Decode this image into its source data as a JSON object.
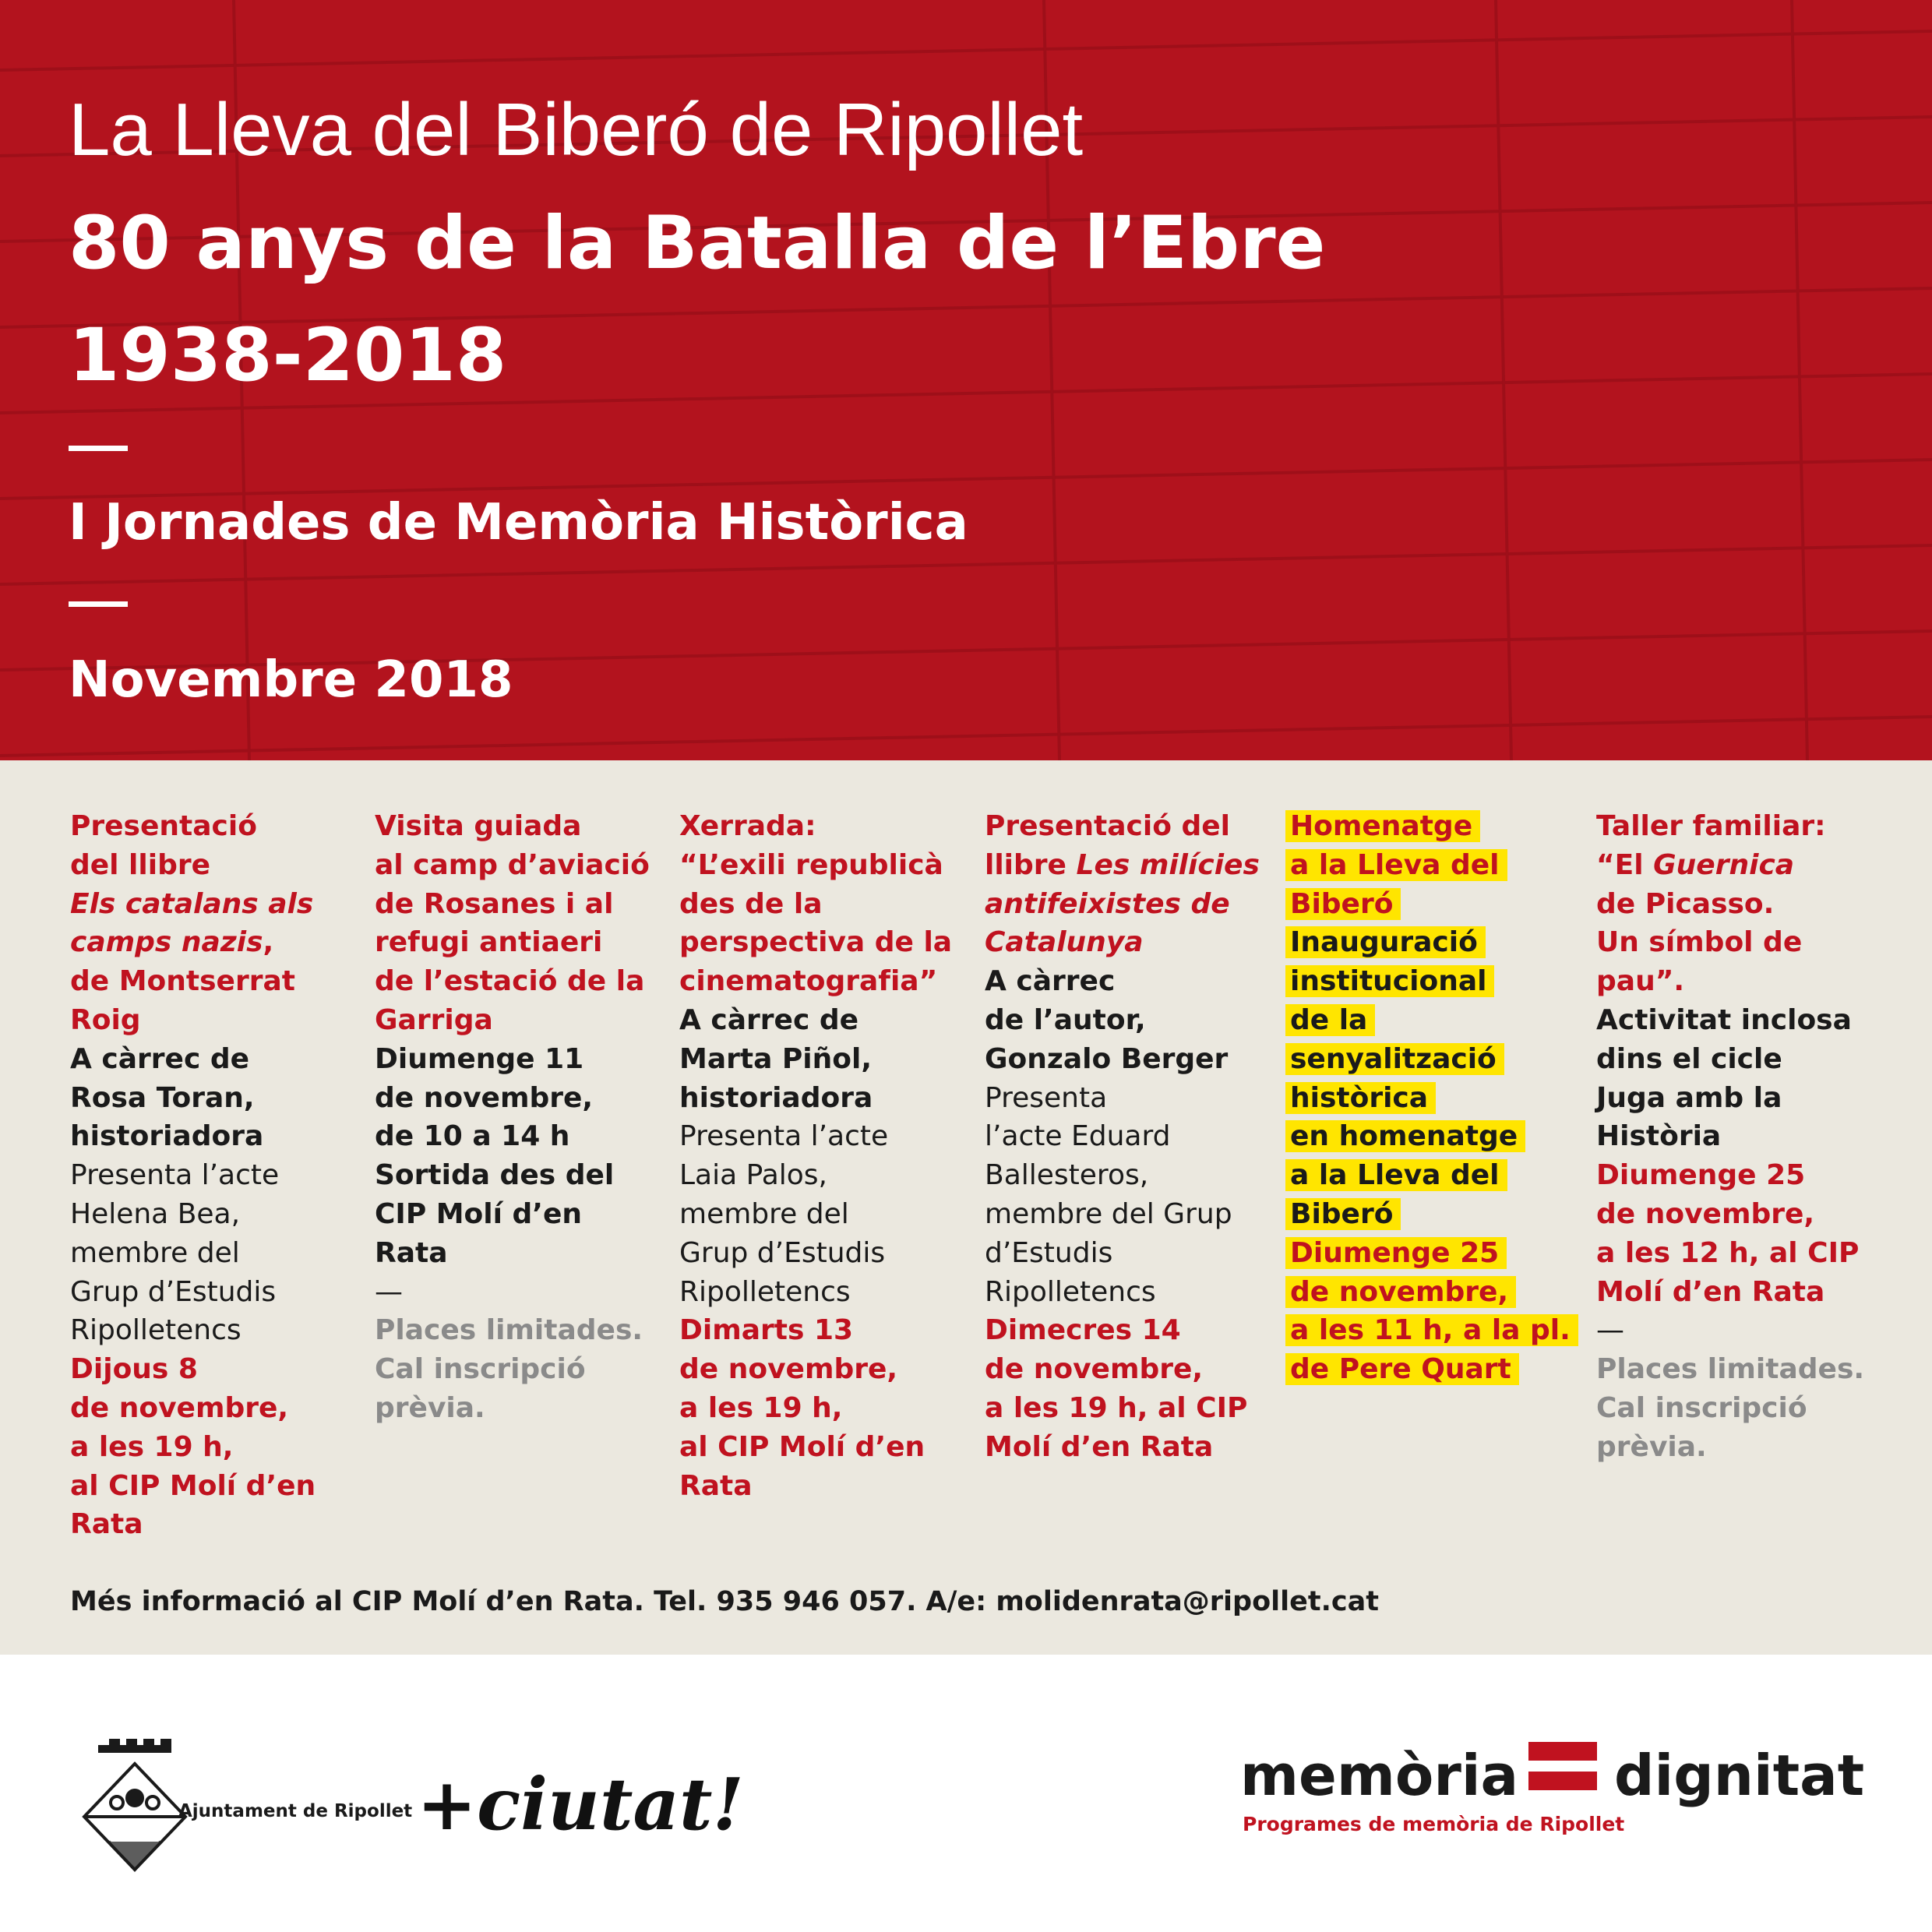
{
  "header": {
    "line1": "La Lleva del Biberó de Ripollet",
    "title": "80 anys de la Batalla de l’Ebre",
    "years": "1938-2018",
    "subtitle": "I Jornades de Memòria Històrica",
    "date": "Novembre 2018"
  },
  "events": [
    {
      "blocks": [
        {
          "style": "red",
          "lines": [
            "Presentació",
            "del llibre",
            [
              {
                "text": "Els catalans als",
                "italic": true
              }
            ],
            [
              {
                "text": "camps nazis",
                "italic": true
              },
              {
                "text": ","
              }
            ],
            "de Montserrat",
            "Roig"
          ]
        },
        {
          "style": "black",
          "lines": [
            "A càrrec de",
            "Rosa Toran,",
            "historiadora"
          ]
        },
        {
          "style": "regular",
          "lines": [
            "Presenta l’acte",
            "Helena Bea,",
            "membre del",
            "Grup d’Estudis",
            "Ripolletencs"
          ]
        },
        {
          "style": "red",
          "lines": [
            "Dijous 8",
            "de novembre,",
            "a les 19 h,",
            "al CIP Molí d’en",
            "Rata"
          ]
        }
      ]
    },
    {
      "blocks": [
        {
          "style": "red",
          "lines": [
            "Visita guiada",
            "al camp d’aviació",
            "de Rosanes i al",
            "refugi antiaeri",
            "de l’estació de la",
            "Garriga"
          ]
        },
        {
          "style": "black",
          "lines": [
            "Diumenge 11",
            "de novembre,",
            "de 10 a 14 h",
            "Sortida des del",
            "CIP Molí d’en",
            "Rata"
          ]
        },
        {
          "style": "regular",
          "lines": [
            "—"
          ]
        },
        {
          "style": "gray",
          "lines": [
            "Places limitades.",
            "Cal inscripció",
            "prèvia."
          ]
        }
      ]
    },
    {
      "blocks": [
        {
          "style": "red",
          "lines": [
            "Xerrada:",
            "“L’exili republicà",
            "des de la",
            "perspectiva de la",
            "cinematografia”"
          ]
        },
        {
          "style": "black",
          "lines": [
            "A càrrec de",
            "Marta Piñol,",
            "historiadora"
          ]
        },
        {
          "style": "regular",
          "lines": [
            "Presenta l’acte",
            "Laia Palos,",
            "membre del",
            "Grup d’Estudis",
            "Ripolletencs"
          ]
        },
        {
          "style": "red",
          "lines": [
            "Dimarts 13",
            "de novembre,",
            "a les 19 h,",
            "al CIP Molí d’en",
            "Rata"
          ]
        }
      ]
    },
    {
      "blocks": [
        {
          "style": "red",
          "lines": [
            "Presentació del",
            [
              {
                "text": "llibre "
              },
              {
                "text": "Les milícies",
                "italic": true
              }
            ],
            [
              {
                "text": "antifeixistes de",
                "italic": true
              }
            ],
            [
              {
                "text": "Catalunya",
                "italic": true
              }
            ]
          ]
        },
        {
          "style": "black",
          "lines": [
            "A càrrec",
            "de l’autor,",
            "Gonzalo Berger"
          ]
        },
        {
          "style": "regular",
          "lines": [
            "Presenta",
            "l’acte Eduard",
            "Ballesteros,",
            "membre del Grup",
            "d’Estudis",
            "Ripolletencs"
          ]
        },
        {
          "style": "red",
          "lines": [
            "Dimecres 14",
            "de novembre,",
            "a les 19 h, al CIP",
            "Molí d’en Rata"
          ]
        }
      ]
    },
    {
      "highlight": true,
      "blocks": [
        {
          "style": "red",
          "lines": [
            "Homenatge",
            "a la Lleva del",
            "Biberó"
          ]
        },
        {
          "style": "black",
          "lines": [
            "Inauguració",
            "institucional",
            "de la",
            "senyalització",
            "històrica",
            "en homenatge",
            "a la Lleva del",
            "Biberó"
          ]
        },
        {
          "style": "red",
          "lines": [
            "Diumenge 25",
            "de novembre,",
            "a les 11 h, a la pl.",
            "de Pere Quart"
          ]
        }
      ]
    },
    {
      "blocks": [
        {
          "style": "red",
          "lines": [
            "Taller familiar:",
            [
              {
                "text": "“El "
              },
              {
                "text": "Guernica",
                "italic": true
              }
            ],
            "de Picasso.",
            "Un símbol de",
            "pau”."
          ]
        },
        {
          "style": "black",
          "lines": [
            "Activitat inclosa",
            "dins el cicle",
            "Juga amb la",
            "Història"
          ]
        },
        {
          "style": "red",
          "lines": [
            "Diumenge 25",
            "de novembre,",
            "a les 12 h, al CIP",
            "Molí d’en Rata"
          ]
        },
        {
          "style": "regular",
          "lines": [
            "—"
          ]
        },
        {
          "style": "gray",
          "lines": [
            "Places limitades.",
            "Cal inscripció",
            "prèvia."
          ]
        }
      ]
    }
  ],
  "info": "Més informació al CIP Molí d’en Rata. Tel. 935 946 057. A/e: molidenrata@ripollet.cat",
  "footer": {
    "council": "Ajuntament de Ripollet",
    "slogan": "+ciutat!",
    "brand_left": "memòria",
    "brand_right": "dignitat",
    "brand_sub": "Programes de memòria de Ripollet"
  }
}
